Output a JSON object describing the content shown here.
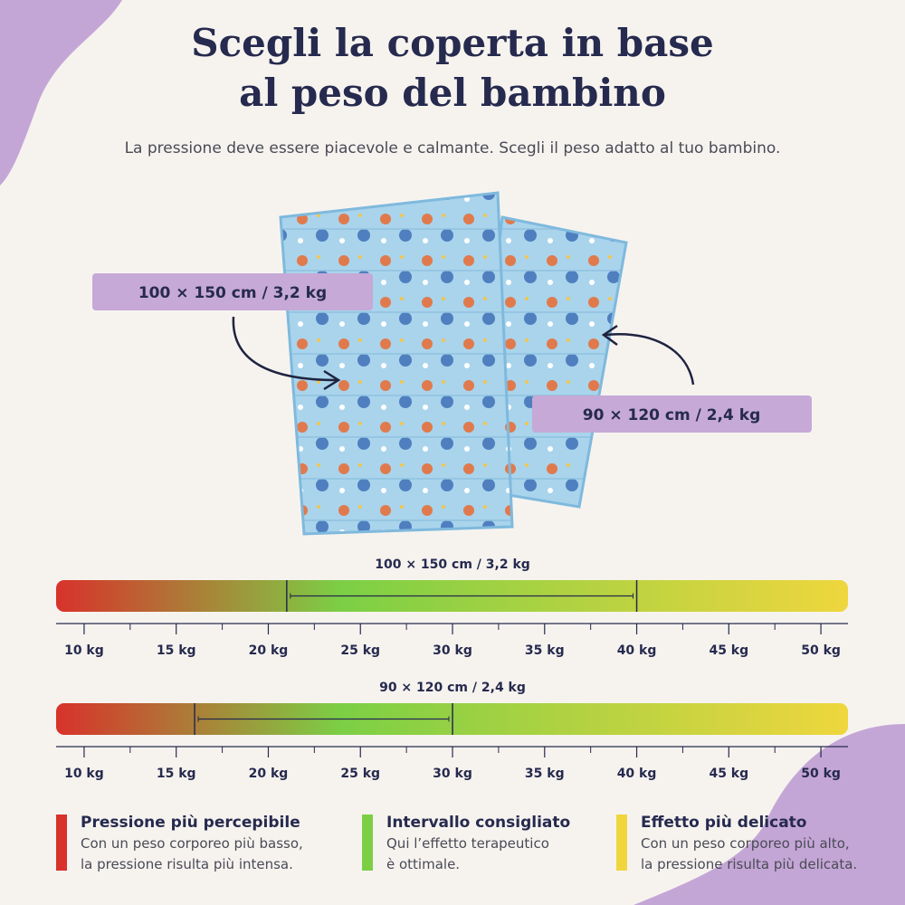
{
  "header": {
    "title_lines": [
      "Scegli la coperta in base",
      "al peso del bambino"
    ],
    "subtitle": "La pressione deve essere piacevole e calmante. Scegli il peso adatto al tuo bambino."
  },
  "products": [
    {
      "label": "100 × 150 cm / 3,2 kg"
    },
    {
      "label": "90 × 120 cm / 2,4 kg"
    }
  ],
  "axis": {
    "xlim": [
      8.48,
      51.47
    ],
    "ticks": [
      {
        "value": 10,
        "label": "10 kg"
      },
      {
        "value": 15,
        "label": "15 kg"
      },
      {
        "value": 20,
        "label": "20 kg"
      },
      {
        "value": 25,
        "label": "25 kg"
      },
      {
        "value": 30,
        "label": "30 kg"
      },
      {
        "value": 35,
        "label": "35 kg"
      },
      {
        "value": 40,
        "label": "40 kg"
      },
      {
        "value": 45,
        "label": "45 kg"
      },
      {
        "value": 50,
        "label": "50 kg"
      }
    ],
    "minor_ticks": [
      12.5,
      17.5,
      22.5,
      27.5,
      32.5,
      37.5,
      42.5,
      47.5
    ],
    "bar_gradient": [
      "#d8322b",
      "#7ccf45",
      "#efd63e"
    ]
  },
  "scales": [
    {
      "label": "100 × 150 cm / 3,2 kg",
      "range": [
        21,
        40
      ]
    },
    {
      "label": "90 × 120 cm / 2,4 kg",
      "range": [
        16,
        30
      ]
    }
  ],
  "legend": [
    {
      "title": "Pressione più percepibile",
      "lines": [
        "Con un peso corporeo più basso,",
        "la pressione risulta più intensa."
      ],
      "color": "#d8322b"
    },
    {
      "title": "Intervallo consigliato",
      "lines": [
        "Qui l’effetto terapeutico",
        "è ottimale."
      ],
      "color": "#7ccf45"
    },
    {
      "title": "Effetto più delicato",
      "lines": [
        "Con un peso corporeo più alto,",
        "la pressione risulta più delicata."
      ],
      "color": "#efd63e"
    }
  ]
}
